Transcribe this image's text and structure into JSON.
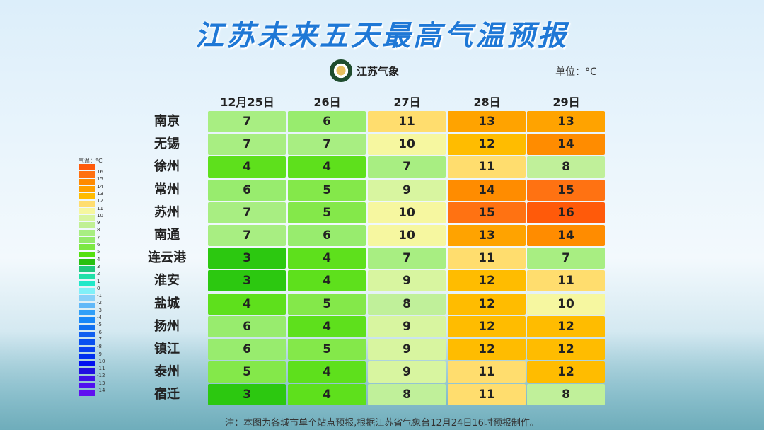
{
  "title": "江苏未来五天最高气温预报",
  "logo_text": "江苏气象",
  "unit": "单位：°C",
  "note": "注：本图为各城市单个站点预报,根据江苏省气象台12月24日16时预报制作。",
  "legend": {
    "title": "气温：°C",
    "swatches": [
      "#ff5a0a",
      "#ff7010",
      "#ff8a00",
      "#ffa000",
      "#ffbb00",
      "#ffdd70",
      "#f6f7a0",
      "#d8f5a0",
      "#c0f094",
      "#a8ee82",
      "#94ea6a",
      "#7ce842",
      "#54e010",
      "#28c010",
      "#20c880",
      "#20e0a8",
      "#20e8c8",
      "#80f0f8",
      "#88d0f8",
      "#60b8f8",
      "#30a0f8",
      "#1888f8",
      "#1070f0",
      "#1060f0",
      "#0850f0",
      "#0840f0",
      "#0030f0",
      "#0010f0",
      "#2010e0",
      "#4010e8",
      "#5010f0",
      "#6010f0"
    ],
    "labels": [
      "16",
      "15",
      "14",
      "13",
      "12",
      "11",
      "10",
      "9",
      "8",
      "7",
      "6",
      "5",
      "4",
      "3",
      "2",
      "1",
      "0",
      "-1",
      "-2",
      "-3",
      "-4",
      "-5",
      "-6",
      "-7",
      "-8",
      "-9",
      "-10",
      "-11",
      "-12",
      "-13",
      "-14"
    ]
  },
  "chart_data": {
    "type": "table",
    "title": "江苏未来五天最高气温预报",
    "columns": [
      "12月25日",
      "26日",
      "27日",
      "28日",
      "29日"
    ],
    "rows": [
      {
        "city": "南京",
        "values": [
          7,
          6,
          11,
          13,
          13
        ]
      },
      {
        "city": "无锡",
        "values": [
          7,
          7,
          10,
          12,
          14
        ]
      },
      {
        "city": "徐州",
        "values": [
          4,
          4,
          7,
          11,
          8
        ]
      },
      {
        "city": "常州",
        "values": [
          6,
          5,
          9,
          14,
          15
        ]
      },
      {
        "city": "苏州",
        "values": [
          7,
          5,
          10,
          15,
          16
        ]
      },
      {
        "city": "南通",
        "values": [
          7,
          6,
          10,
          13,
          14
        ]
      },
      {
        "city": "连云港",
        "values": [
          3,
          4,
          7,
          11,
          7
        ]
      },
      {
        "city": "淮安",
        "values": [
          3,
          4,
          9,
          12,
          11
        ]
      },
      {
        "city": "盐城",
        "values": [
          4,
          5,
          8,
          12,
          10
        ]
      },
      {
        "city": "扬州",
        "values": [
          6,
          4,
          9,
          12,
          12
        ]
      },
      {
        "city": "镇江",
        "values": [
          6,
          5,
          9,
          12,
          12
        ]
      },
      {
        "city": "泰州",
        "values": [
          5,
          4,
          9,
          11,
          12
        ]
      },
      {
        "city": "宿迁",
        "values": [
          3,
          4,
          8,
          11,
          8
        ]
      }
    ],
    "color_scale": {
      "3": "#2cc810",
      "4": "#5ee01c",
      "5": "#84e84a",
      "6": "#98ec6e",
      "7": "#a8ee82",
      "8": "#c0f09a",
      "9": "#d8f5a0",
      "10": "#f6f7a0",
      "11": "#ffdd6e",
      "12": "#ffbc00",
      "13": "#ffa300",
      "14": "#ff8c00",
      "15": "#ff7212",
      "16": "#ff5a0a"
    }
  }
}
